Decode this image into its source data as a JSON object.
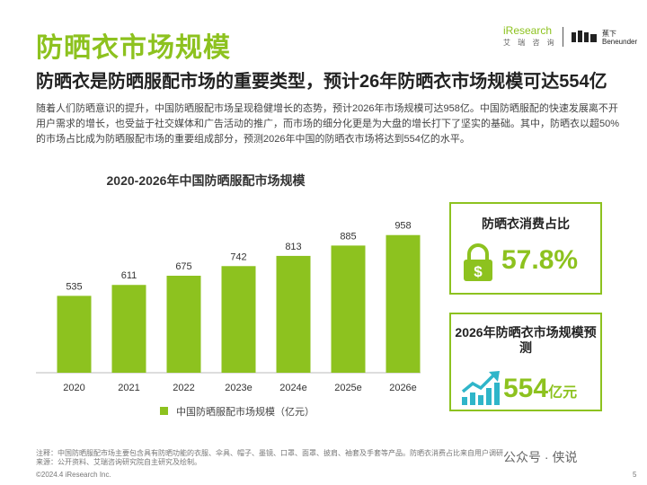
{
  "header": {
    "title": "防晒衣市场规模",
    "subtitle": "防晒衣是防晒服配市场的重要类型，预计26年防晒衣市场规模可达554亿",
    "logo_iresearch": "iResearch",
    "logo_iresearch_sub": "艾 瑞 咨 询",
    "logo_benunder": "蕉下",
    "logo_benunder_sub": "Beneunder"
  },
  "intro": "随着人们防晒意识的提升，中国防晒服配市场呈现稳健增长的态势，预计2026年市场规模可达958亿。中国防晒服配的快速发展离不开用户需求的增长，也受益于社交媒体和广告活动的推广，而市场的细分化更是为大盘的增长打下了坚实的基础。其中，防晒衣以超50%的市场占比成为防晒服配市场的重要组成部分，预测2026年中国的防晒衣市场将达到554亿的水平。",
  "chart_data": {
    "type": "bar",
    "title": "2020-2026年中国防晒服配市场规模",
    "categories": [
      "2020",
      "2021",
      "2022",
      "2023e",
      "2024e",
      "2025e",
      "2026e"
    ],
    "series": [
      {
        "name": "中国防晒服配市场规模（亿元）",
        "values": [
          535,
          611,
          675,
          742,
          813,
          885,
          958
        ]
      }
    ],
    "ylim": [
      0,
      1000
    ],
    "grid": false,
    "legend": "bottom",
    "bar_color": "#8dc21f"
  },
  "cards": {
    "share_label": "防晒衣消费占比",
    "share_value": "57.8%",
    "forecast_label": "2026年防晒衣市场规模预测",
    "forecast_value": "554",
    "forecast_unit": "亿元"
  },
  "icons": {
    "lock": "dollar-lock-icon",
    "growth": "growth-arrow-icon"
  },
  "colors": {
    "accent": "#8dc21f",
    "forecast_icon": "#2fb5c9"
  },
  "footer": {
    "note": "注释：中国防晒服配市场主要包含具有防晒功能的衣服、伞具、帽子、墨镜、口罩、面罩、披肩、袖套及手套等产品。防晒衣消费占比来自用户调研",
    "source": "来源：公开资料、艾瑞咨询研究院自主研究及绘制。",
    "copyright": "©2024.4 iResearch Inc.",
    "watermark": "公众号 · 侠说",
    "page": "5"
  }
}
